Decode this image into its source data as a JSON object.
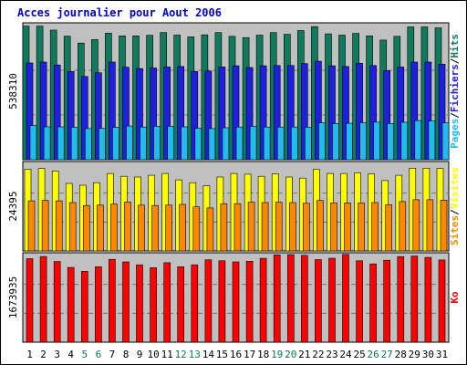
{
  "chart_data": {
    "type": "bar",
    "title": "Acces journalier pour Aout 2006",
    "categories": [
      "1",
      "2",
      "3",
      "4",
      "5",
      "6",
      "7",
      "8",
      "9",
      "10",
      "11",
      "12",
      "13",
      "14",
      "15",
      "16",
      "17",
      "18",
      "19",
      "20",
      "21",
      "22",
      "23",
      "24",
      "25",
      "26",
      "27",
      "28",
      "29",
      "30",
      "31"
    ],
    "weekend_days": [
      "5",
      "6",
      "12",
      "13",
      "19",
      "20",
      "26",
      "27"
    ],
    "panels": [
      {
        "axis_label": "538310",
        "ylim": [
          0,
          538310
        ],
        "legend": [
          "Pages",
          "Fichiers",
          "Hits"
        ],
        "series": [
          {
            "name": "Hits",
            "color": "#0F7A5C",
            "values": [
              536000,
              536000,
              520000,
              496000,
              468000,
              482000,
              508000,
              497000,
              497000,
              499000,
              510000,
              500000,
              493000,
              501000,
              510000,
              495000,
              490000,
              500000,
              510000,
              503000,
              518000,
              534000,
              505000,
              500000,
              507000,
              497000,
              480000,
              495000,
              533000,
              533000,
              529000
            ]
          },
          {
            "name": "Fichiers",
            "color": "#1F1FE0",
            "values": [
              388000,
              392000,
              380000,
              354000,
              334000,
              349000,
              392000,
              371000,
              366000,
              368000,
              372000,
              374000,
              354000,
              356000,
              372000,
              377000,
              370000,
              377000,
              378000,
              378000,
              386000,
              395000,
              377000,
              374000,
              387000,
              378000,
              357000,
              372000,
              392000,
              392000,
              383000
            ]
          },
          {
            "name": "Pages",
            "color": "#22BBEE",
            "values": [
              137000,
              132000,
              132000,
              130000,
              125000,
              126000,
              130000,
              135000,
              131000,
              134000,
              134000,
              132000,
              126000,
              125000,
              128000,
              131000,
              134000,
              131000,
              131000,
              131000,
              130000,
              148000,
              145000,
              146000,
              148000,
              151000,
              145000,
              150000,
              157000,
              155000,
              148000
            ]
          }
        ]
      },
      {
        "axis_label": "24395",
        "ylim": [
          0,
          24395
        ],
        "legend": [
          "Sites",
          "Visites"
        ],
        "series": [
          {
            "name": "Visites",
            "color": "#FFFF00",
            "values": [
              23000,
              23200,
              22500,
              19000,
              18500,
              19200,
              21800,
              21000,
              20800,
              21300,
              21800,
              20000,
              19200,
              18300,
              20800,
              21800,
              21600,
              21000,
              21700,
              20800,
              20500,
              23000,
              21800,
              21800,
              22000,
              21700,
              19800,
              21300,
              23300,
              23300,
              23200
            ]
          },
          {
            "name": "Sites",
            "color": "#FF8800",
            "values": [
              14100,
              14200,
              14100,
              13600,
              12800,
              12900,
              13200,
              13800,
              12900,
              12800,
              12900,
              13100,
              12400,
              12100,
              13300,
              13300,
              13700,
              13600,
              13700,
              13600,
              13400,
              14200,
              13500,
              13500,
              13500,
              13600,
              13000,
              13900,
              14400,
              14400,
              14300
            ]
          }
        ]
      },
      {
        "axis_label": "1673935",
        "ylim": [
          0,
          1673935
        ],
        "legend": [
          "Ko"
        ],
        "series": [
          {
            "name": "Ko",
            "color": "#FF0000",
            "values": [
              1612000,
              1655000,
              1557000,
              1443000,
              1368000,
              1455000,
              1600000,
              1550000,
              1494000,
              1438000,
              1534000,
              1455000,
              1494000,
              1592000,
              1572000,
              1550000,
              1563000,
              1620000,
              1684000,
              1690000,
              1678000,
              1595000,
              1621000,
              1695000,
              1571000,
              1512000,
              1582000,
              1652000,
              1664000,
              1637000,
              1588000
            ]
          }
        ]
      }
    ]
  }
}
